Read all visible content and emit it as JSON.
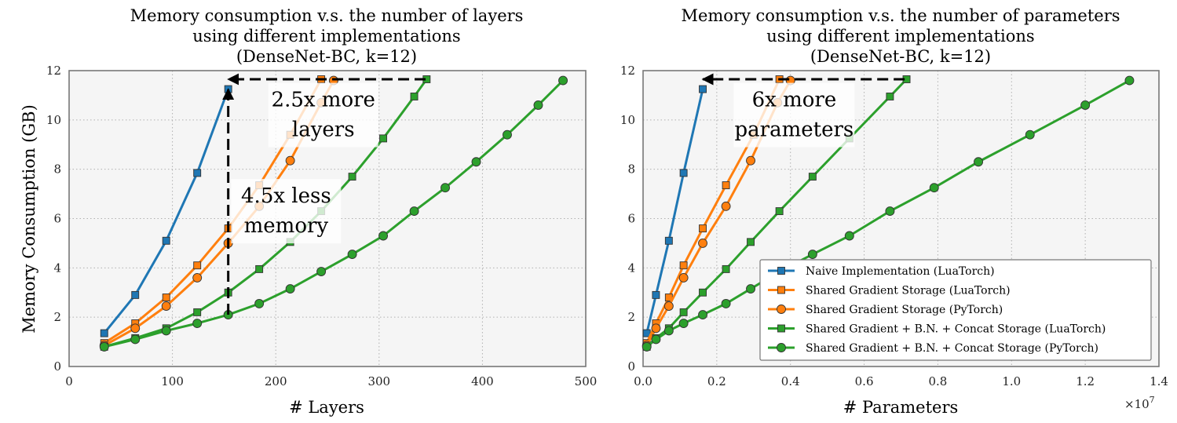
{
  "colors": {
    "naive_blue": "#1f77b4",
    "orange": "#ff7f0e",
    "green": "#2ca02c",
    "plot_bg": "#f5f5f5",
    "grid": "#b0b0b0"
  },
  "chart_data": [
    {
      "type": "line",
      "title": [
        "Memory consumption v.s. the number of layers",
        "using different implementations",
        "(DenseNet-BC, k=12)"
      ],
      "xlabel": "# Layers",
      "ylabel": "Memory Consumption (GB)",
      "xlim": [
        0,
        500
      ],
      "ylim": [
        0,
        12
      ],
      "xticks": [
        "0",
        "100",
        "200",
        "300",
        "400",
        "500"
      ],
      "yticks": [
        "0",
        "2",
        "4",
        "6",
        "8",
        "10",
        "12"
      ],
      "grid": true,
      "series": [
        {
          "name": "Naive Implementation (LuaTorch)",
          "color": "naive_blue",
          "marker": "square",
          "x": [
            34,
            64,
            94,
            124,
            154
          ],
          "y": [
            1.35,
            2.9,
            5.1,
            7.85,
            11.25
          ]
        },
        {
          "name": "Shared Gradient Storage (LuaTorch)",
          "color": "orange",
          "marker": "square",
          "x": [
            34,
            64,
            94,
            124,
            154,
            184,
            214,
            244
          ],
          "y": [
            0.95,
            1.75,
            2.8,
            4.1,
            5.6,
            7.35,
            9.4,
            11.65
          ]
        },
        {
          "name": "Shared Gradient Storage (PyTorch)",
          "color": "orange",
          "marker": "circle",
          "x": [
            34,
            64,
            94,
            124,
            154,
            184,
            214,
            244,
            256
          ],
          "y": [
            0.85,
            1.55,
            2.45,
            3.6,
            5.0,
            6.5,
            8.35,
            10.7,
            11.6
          ]
        },
        {
          "name": "Shared Gradient + B.N. + Concat Storage (LuaTorch)",
          "color": "green",
          "marker": "square",
          "x": [
            34,
            64,
            94,
            124,
            154,
            184,
            214,
            244,
            274,
            304,
            334,
            346
          ],
          "y": [
            0.8,
            1.15,
            1.55,
            2.2,
            3.0,
            3.95,
            5.05,
            6.3,
            7.7,
            9.25,
            10.95,
            11.65
          ]
        },
        {
          "name": "Shared Gradient + B.N. + Concat Storage (PyTorch)",
          "color": "green",
          "marker": "circle",
          "x": [
            34,
            64,
            94,
            124,
            154,
            184,
            214,
            244,
            274,
            304,
            334,
            364,
            394,
            424,
            454,
            478
          ],
          "y": [
            0.8,
            1.1,
            1.45,
            1.75,
            2.1,
            2.55,
            3.15,
            3.85,
            4.55,
            5.3,
            6.3,
            7.25,
            8.3,
            9.4,
            10.6,
            11.6
          ]
        }
      ],
      "annotations": [
        {
          "lines": [
            "2.5x more",
            "layers"
          ],
          "x": 246,
          "y": 10.2
        },
        {
          "lines": [
            "4.5x less",
            "memory"
          ],
          "x": 210,
          "y": 6.3
        }
      ],
      "arrows": [
        {
          "from": [
            345,
            11.65
          ],
          "to": [
            154,
            11.65
          ]
        },
        {
          "from": [
            154,
            2.1
          ],
          "to": [
            154,
            11.25
          ]
        }
      ]
    },
    {
      "type": "line",
      "title": [
        "Memory consumption v.s. the number of parameters",
        "using different implementations",
        "(DenseNet-BC, k=12)"
      ],
      "xlabel": "# Parameters",
      "ylabel": "",
      "xlim": [
        0,
        14000000
      ],
      "ylim": [
        0,
        12
      ],
      "xticks": [
        "0.0",
        "0.2",
        "0.4",
        "0.6",
        "0.8",
        "1.0",
        "1.2",
        "1.4"
      ],
      "yticks": [
        "0",
        "2",
        "4",
        "6",
        "8",
        "10",
        "12"
      ],
      "xscale_label": "×10",
      "xscale_exp": "7",
      "grid": true,
      "legend_position": "lower-right",
      "series": [
        {
          "name": "Naive Implementation (LuaTorch)",
          "color": "naive_blue",
          "marker": "square",
          "x": [
            100000,
            350000,
            700000,
            1100000,
            1620000
          ],
          "y": [
            1.35,
            2.9,
            5.1,
            7.85,
            11.25
          ]
        },
        {
          "name": "Shared Gradient Storage (LuaTorch)",
          "color": "orange",
          "marker": "square",
          "x": [
            100000,
            350000,
            700000,
            1100000,
            1620000,
            2250000,
            3000000,
            3700000
          ],
          "y": [
            0.95,
            1.75,
            2.8,
            4.1,
            5.6,
            7.35,
            9.4,
            11.65
          ]
        },
        {
          "name": "Shared Gradient Storage (PyTorch)",
          "color": "orange",
          "marker": "circle",
          "x": [
            100000,
            350000,
            700000,
            1100000,
            1620000,
            2250000,
            2920000,
            3650000,
            4000000
          ],
          "y": [
            0.85,
            1.55,
            2.45,
            3.6,
            5.0,
            6.5,
            8.35,
            10.7,
            11.6
          ]
        },
        {
          "name": "Shared Gradient + B.N. + Concat Storage (LuaTorch)",
          "color": "green",
          "marker": "square",
          "x": [
            100000,
            350000,
            700000,
            1100000,
            1620000,
            2250000,
            2920000,
            3700000,
            4600000,
            5600000,
            6700000,
            7150000
          ],
          "y": [
            0.8,
            1.15,
            1.55,
            2.2,
            3.0,
            3.95,
            5.05,
            6.3,
            7.7,
            9.25,
            10.95,
            11.65
          ]
        },
        {
          "name": "Shared Gradient + B.N. + Concat Storage (PyTorch)",
          "color": "green",
          "marker": "circle",
          "x": [
            100000,
            350000,
            700000,
            1100000,
            1620000,
            2250000,
            2920000,
            3700000,
            4600000,
            5600000,
            6700000,
            7900000,
            9100000,
            10500000,
            12000000,
            13200000
          ],
          "y": [
            0.8,
            1.1,
            1.45,
            1.75,
            2.1,
            2.55,
            3.15,
            3.85,
            4.55,
            5.3,
            6.3,
            7.25,
            8.3,
            9.4,
            10.6,
            11.6
          ]
        }
      ],
      "annotations": [
        {
          "lines": [
            "6x more",
            "parameters"
          ],
          "x": 4100000,
          "y": 10.2
        }
      ],
      "arrows": [
        {
          "from": [
            7100000,
            11.65
          ],
          "to": [
            1620000,
            11.65
          ]
        }
      ]
    }
  ]
}
